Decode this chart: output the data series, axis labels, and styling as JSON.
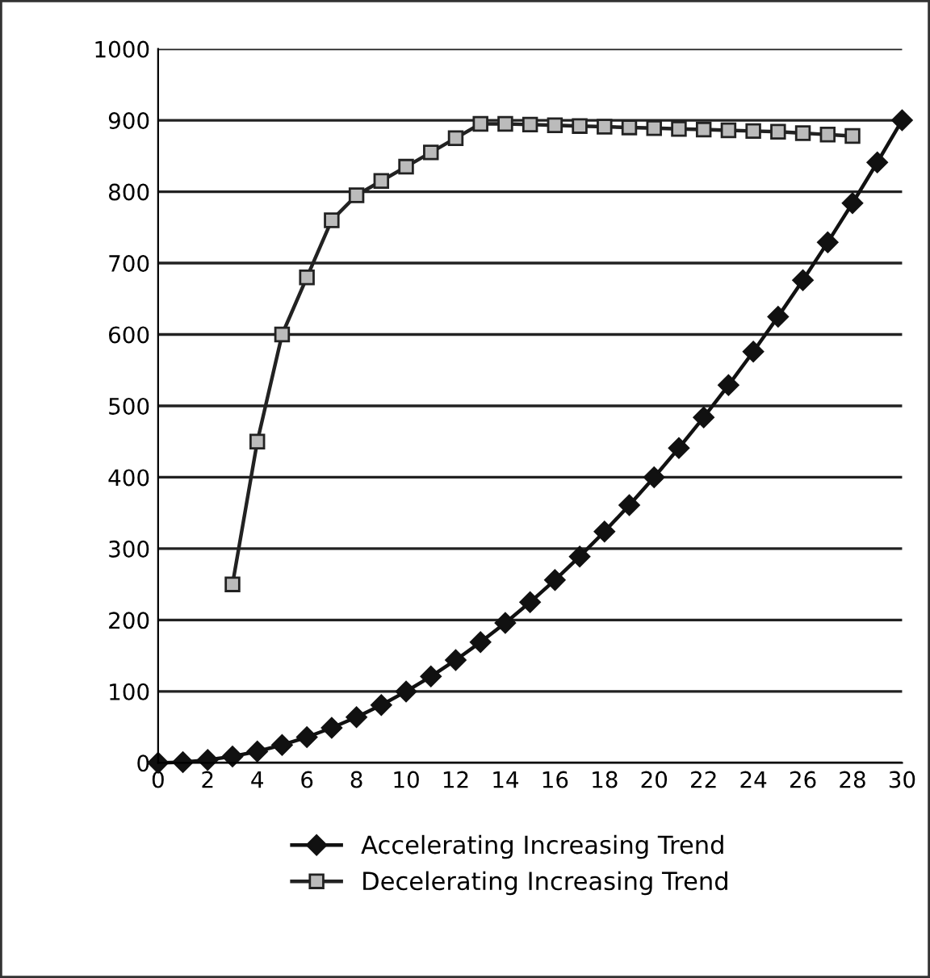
{
  "chart_data": {
    "type": "line",
    "xlim": [
      0,
      30
    ],
    "xticks": [
      0,
      2,
      4,
      6,
      8,
      10,
      12,
      14,
      16,
      18,
      20,
      22,
      24,
      26,
      28,
      30
    ],
    "ylim": [
      0,
      1000
    ],
    "yticks": [
      0,
      100,
      200,
      300,
      400,
      500,
      600,
      700,
      800,
      900,
      1000
    ],
    "grid": "y",
    "legend": "bottom",
    "line_style": "solid",
    "series": [
      {
        "name": "Accelerating Increasing Trend",
        "color": "#111111",
        "marker": "diamond",
        "x": [
          0,
          1,
          2,
          3,
          4,
          5,
          6,
          7,
          8,
          9,
          10,
          11,
          12,
          13,
          14,
          15,
          16,
          17,
          18,
          19,
          20,
          21,
          22,
          23,
          24,
          25,
          26,
          27,
          28,
          29,
          30
        ],
        "values": [
          0,
          1,
          4,
          9,
          16,
          25,
          36,
          49,
          64,
          81,
          100,
          121,
          144,
          169,
          196,
          225,
          256,
          289,
          324,
          361,
          400,
          441,
          484,
          529,
          576,
          625,
          676,
          729,
          784,
          841,
          900
        ]
      },
      {
        "name": "Decelerating Increasing Trend",
        "color": "#222222",
        "marker": "square",
        "x": [
          3,
          4,
          5,
          6,
          7,
          8,
          9,
          10,
          11,
          12,
          13,
          14,
          15,
          16,
          17,
          18,
          19,
          20,
          21,
          22,
          23,
          24,
          25,
          26,
          27,
          28
        ],
        "values": [
          250,
          450,
          600,
          680,
          760,
          795,
          815,
          835,
          855,
          875,
          895,
          895,
          894,
          893,
          892,
          891,
          890,
          889,
          888,
          887,
          886,
          885,
          884,
          882,
          880,
          878
        ]
      }
    ]
  }
}
